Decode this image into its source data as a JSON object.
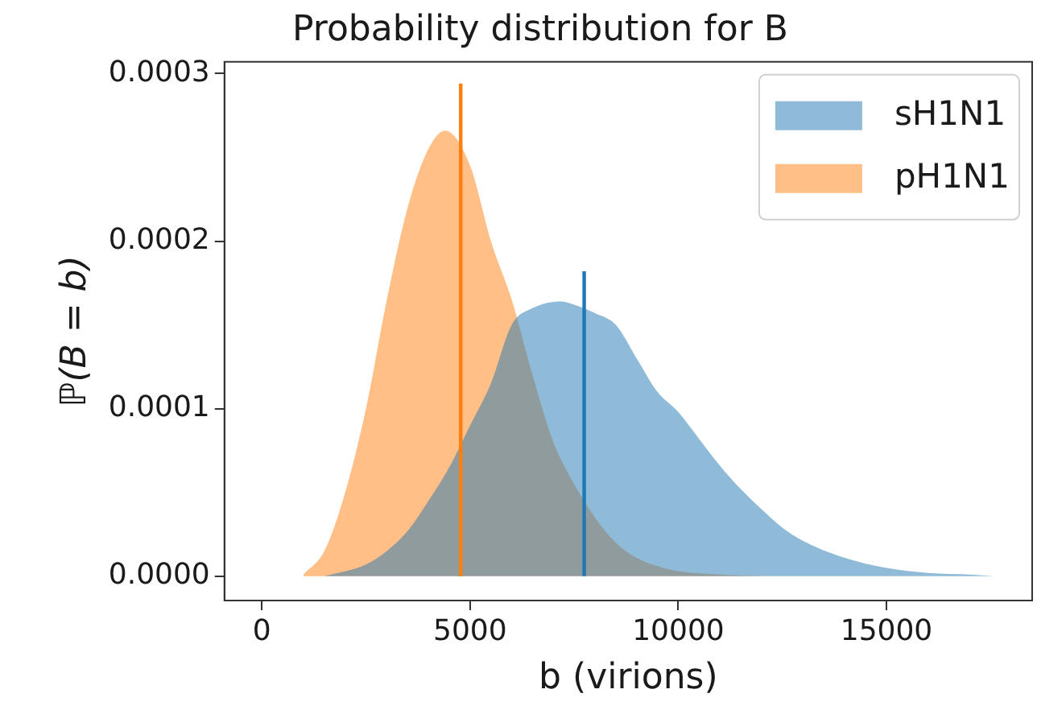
{
  "chart_data": {
    "type": "area",
    "title": "Probability distribution for B",
    "xlabel": "b (virions)",
    "ylabel": "ℙ(B = b)",
    "xlim": [
      -900,
      18500
    ],
    "xticks": [
      0,
      5000,
      10000,
      15000
    ],
    "ylim": [
      -1.45e-05,
      0.000307
    ],
    "yticks": [
      {
        "value": 0,
        "label": "0.0000"
      },
      {
        "value": 0.0001,
        "label": "0.0001"
      },
      {
        "value": 0.0002,
        "label": "0.0002"
      },
      {
        "value": 0.0003,
        "label": "0.0003"
      }
    ],
    "grid": false,
    "legend": "top right",
    "series": [
      {
        "name": "sH1N1",
        "color": "#8fbbd9",
        "x": [
          1500,
          2500,
          3000,
          3500,
          4000,
          4500,
          5000,
          5500,
          6000,
          6500,
          7200,
          7500,
          8000,
          8500,
          9000,
          9500,
          10000,
          10500,
          11000,
          11500,
          12000,
          12500,
          13000,
          14000,
          15000,
          16000,
          17000,
          17600
        ],
        "values": [
          0,
          7e-06,
          1.5e-05,
          2.7e-05,
          4.5e-05,
          6.5e-05,
          9e-05,
          0.000115,
          0.00015,
          0.00016,
          0.000164,
          0.000162,
          0.000157,
          0.00015,
          0.00013,
          0.00011,
          9.8e-05,
          8.2e-05,
          6.6e-05,
          5.2e-05,
          4e-05,
          2.9e-05,
          2.1e-05,
          1.1e-05,
          5e-06,
          2e-06,
          1e-06,
          0
        ]
      },
      {
        "name": "pH1N1",
        "color": "#ffbf86",
        "x": [
          1000,
          1500,
          2000,
          2500,
          3000,
          3500,
          4000,
          4400,
          5000,
          5500,
          6000,
          6500,
          7000,
          7500,
          8000,
          8500,
          9000,
          9500,
          10000,
          11000,
          12000
        ],
        "values": [
          1e-06,
          1.5e-05,
          5e-05,
          0.0001,
          0.000165,
          0.00022,
          0.000255,
          0.000266,
          0.000245,
          0.0002,
          0.000165,
          0.00012,
          8e-05,
          5.5e-05,
          3.5e-05,
          2e-05,
          1.1e-05,
          6e-06,
          3e-06,
          1e-06,
          0
        ]
      },
      {
        "type": "line",
        "color": "#1f77b4",
        "x": [
          7740,
          7740
        ],
        "values": [
          0,
          0.000182
        ]
      },
      {
        "type": "line",
        "color": "#ff7f0e",
        "x": [
          4775,
          4775
        ],
        "values": [
          0,
          0.000294
        ]
      }
    ]
  }
}
